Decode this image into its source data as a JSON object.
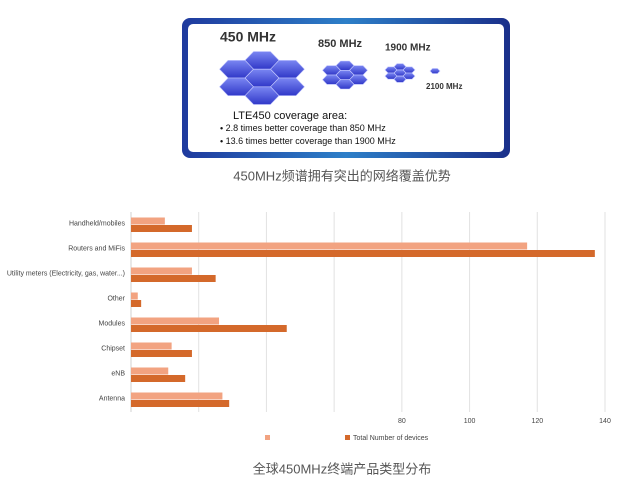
{
  "figure": {
    "bands": [
      "450 MHz",
      "850 MHz",
      "1900 MHz",
      "2100 MHz"
    ],
    "heading": "LTE450 coverage area:",
    "bullets": [
      "2.8 times better coverage than  850 MHz",
      "13.6 times better coverage than 1900 MHz"
    ],
    "caption": "450MHz频谱拥有突出的网络覆盖优势"
  },
  "chart_data": {
    "type": "hbar",
    "categories": [
      "Handheld/mobiles",
      "Routers and MiFis",
      "Utility meters (Electricity, gas, water...)",
      "Other",
      "Modules",
      "Chipset",
      "eNB",
      "Antenna"
    ],
    "series": [
      {
        "color": "#f2a381",
        "values": [
          10,
          117,
          18,
          2,
          26,
          12,
          11,
          27
        ]
      },
      {
        "name": "Total Number of devices",
        "color": "#d4692b",
        "values": [
          18,
          137,
          25,
          3,
          46,
          18,
          16,
          29
        ]
      }
    ],
    "xlim": [
      0,
      140
    ],
    "xticks": [
      {
        "value": 0,
        "label": null
      },
      {
        "value": 20,
        "label": null
      },
      {
        "value": 40,
        "label": null
      },
      {
        "value": 60,
        "label": null
      },
      80,
      100,
      120,
      140
    ],
    "grid": true,
    "caption": "全球450MHz终端产品类型分布"
  }
}
